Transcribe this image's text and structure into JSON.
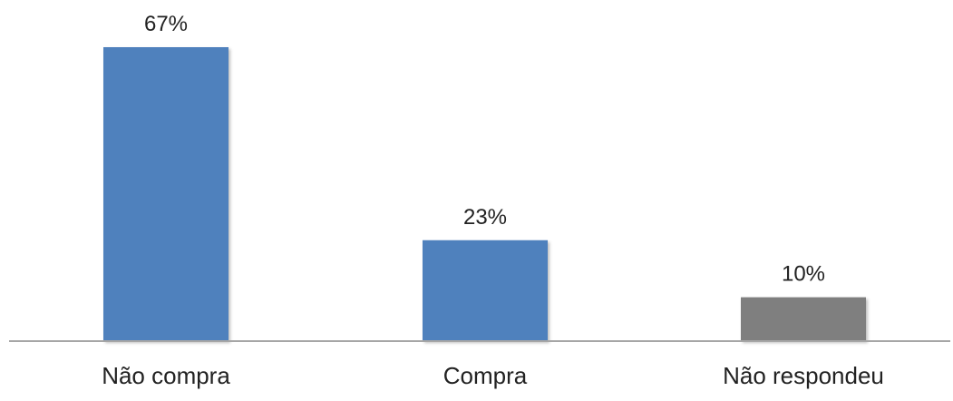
{
  "chart_data": {
    "type": "bar",
    "title": "",
    "xlabel": "",
    "ylabel": "",
    "categories": [
      "Não compra",
      "Compra",
      "Não respondeu"
    ],
    "values": [
      67,
      23,
      10
    ],
    "value_labels": [
      "67%",
      "23%",
      "10%"
    ],
    "unit": "%",
    "ylim": [
      0,
      70
    ],
    "grid": false,
    "legend": "none",
    "colors": [
      "#4F81BD",
      "#4F81BD",
      "#7F7F7F"
    ],
    "axis_color": "#A6A6A6"
  }
}
